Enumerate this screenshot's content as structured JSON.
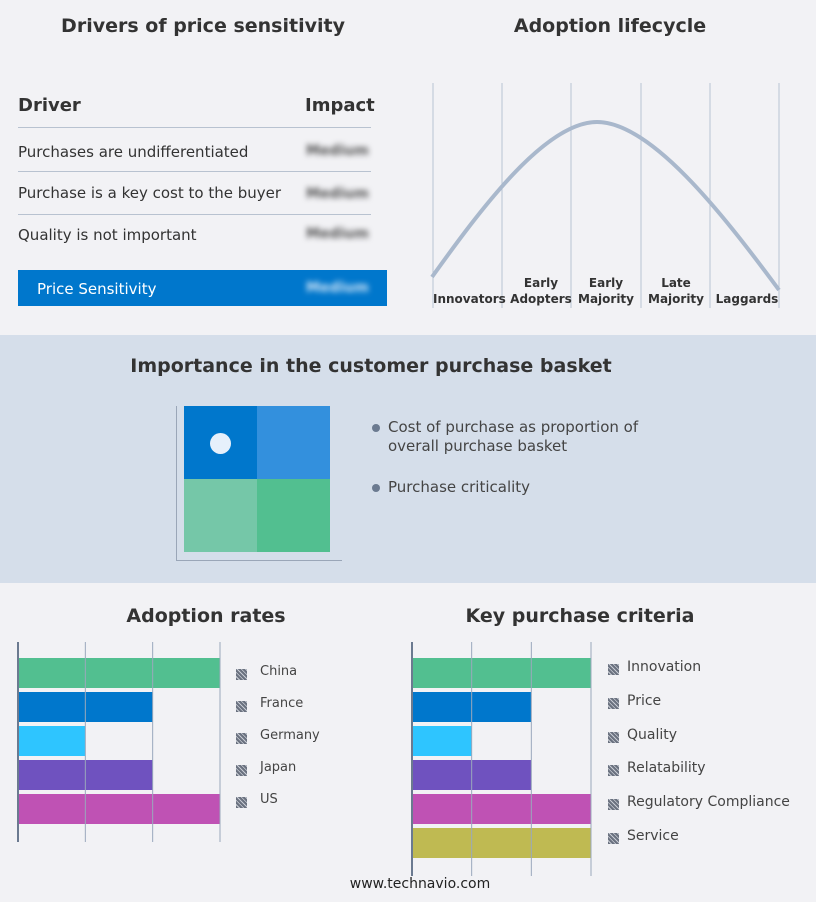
{
  "drivers": {
    "title": "Drivers of price sensitivity",
    "header": {
      "driver": "Driver",
      "impact": "Impact"
    },
    "rows": [
      {
        "driver": "Purchases are undifferentiated",
        "impact": "Medium"
      },
      {
        "driver": "Purchase is a key cost to the buyer",
        "impact": "Medium"
      },
      {
        "driver": "Quality is not important",
        "impact": "Medium"
      }
    ],
    "summary": {
      "label": "Price Sensitivity",
      "impact": "Medium",
      "color": "#0077cc"
    }
  },
  "lifecycle": {
    "title": "Adoption lifecycle",
    "stages": [
      "Innovators",
      "Early Adopters",
      "Early Majority",
      "Late Majority",
      "Laggards"
    ],
    "curve_color": "#a9b8cc"
  },
  "basket": {
    "title": "Importance in the customer purchase basket",
    "legend": [
      "Cost of purchase as proportion of overall purchase basket",
      "Purchase criticality"
    ],
    "quadrant_colors": [
      "#0077cc",
      "#3390dd",
      "#75c7a8",
      "#52bf90"
    ]
  },
  "chart_data": [
    {
      "type": "bar",
      "title": "Adoption rates",
      "orientation": "horizontal",
      "categories": [
        "China",
        "France",
        "Germany",
        "Japan",
        "US"
      ],
      "values": [
        3,
        2,
        1,
        2,
        3
      ],
      "xlim": [
        0,
        3
      ],
      "grid": true,
      "legend": "right",
      "colors": [
        "#52bf90",
        "#0077cc",
        "#2ec5ff",
        "#6f52bf",
        "#bf52b4"
      ]
    },
    {
      "type": "bar",
      "title": "Key purchase criteria",
      "orientation": "horizontal",
      "categories": [
        "Innovation",
        "Price",
        "Quality",
        "Relatability",
        "Regulatory Compliance",
        "Service"
      ],
      "values": [
        3,
        2,
        1,
        2,
        3,
        3
      ],
      "xlim": [
        0,
        3
      ],
      "grid": true,
      "legend": "right",
      "colors": [
        "#52bf90",
        "#0077cc",
        "#2ec5ff",
        "#6f52bf",
        "#bf52b4",
        "#bfba52"
      ]
    }
  ],
  "footer": "www.technavio.com"
}
